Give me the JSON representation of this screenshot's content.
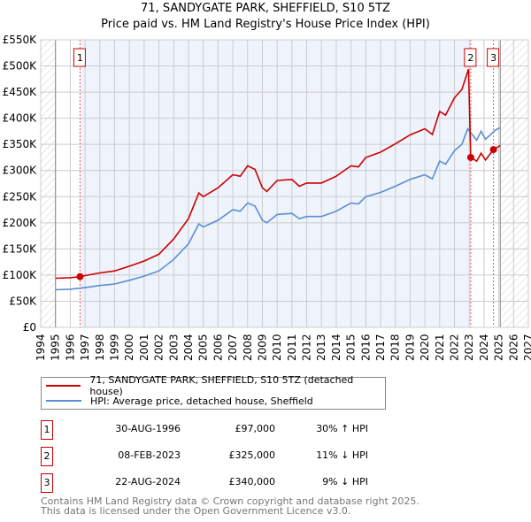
{
  "chart_data": {
    "type": "line",
    "title": "71, SANDYGATE PARK, SHEFFIELD, S10 5TZ",
    "subtitle": "Price paid vs. HM Land Registry's House Price Index (HPI)",
    "xlim": [
      1994,
      2027
    ],
    "ylim": [
      0,
      550000
    ],
    "x_ticks": [
      "1994",
      "1995",
      "1996",
      "1997",
      "1998",
      "1999",
      "2000",
      "2001",
      "2002",
      "2003",
      "2004",
      "2005",
      "2006",
      "2007",
      "2008",
      "2009",
      "2010",
      "2011",
      "2012",
      "2013",
      "2014",
      "2015",
      "2016",
      "2017",
      "2018",
      "2019",
      "2020",
      "2021",
      "2022",
      "2023",
      "2024",
      "2025",
      "2026",
      "2027"
    ],
    "y_ticks": [
      {
        "v": 0,
        "l": "£0"
      },
      {
        "v": 50000,
        "l": "£50K"
      },
      {
        "v": 100000,
        "l": "£100K"
      },
      {
        "v": 150000,
        "l": "£150K"
      },
      {
        "v": 200000,
        "l": "£200K"
      },
      {
        "v": 250000,
        "l": "£250K"
      },
      {
        "v": 300000,
        "l": "£300K"
      },
      {
        "v": 350000,
        "l": "£350K"
      },
      {
        "v": 400000,
        "l": "£400K"
      },
      {
        "v": 450000,
        "l": "£450K"
      },
      {
        "v": 500000,
        "l": "£500K"
      },
      {
        "v": 550000,
        "l": "£550K"
      }
    ],
    "grid": true,
    "series": [
      {
        "name": "71, SANDYGATE PARK, SHEFFIELD, S10 5TZ (detached house)",
        "color": "#cc0000",
        "x": [
          1995,
          1996,
          1996.66,
          1997,
          1998,
          1999,
          2000,
          2001,
          2002,
          2003,
          2004,
          2004.7,
          2005,
          2006,
          2007,
          2007.5,
          2008,
          2008.5,
          2009,
          2009.3,
          2010,
          2011,
          2011.5,
          2012,
          2013,
          2014,
          2015,
          2015.5,
          2016,
          2017,
          2018,
          2019,
          2020,
          2020.5,
          2021,
          2021.4,
          2022,
          2022.5,
          2022.95,
          2023.1,
          2023.5,
          2023.8,
          2024.1,
          2024.64,
          2025.1
        ],
        "y": [
          94000,
          95000,
          97000,
          99000,
          104000,
          108000,
          117000,
          127000,
          140000,
          169000,
          208000,
          257000,
          250000,
          267000,
          292000,
          289000,
          309000,
          302000,
          267000,
          260000,
          281000,
          283000,
          270000,
          276000,
          276000,
          289000,
          309000,
          307000,
          325000,
          335000,
          351000,
          368000,
          380000,
          369000,
          413000,
          406000,
          439000,
          455000,
          494000,
          325000,
          318000,
          333000,
          320000,
          340000,
          348000
        ]
      },
      {
        "name": "HPI: Average price, detached house, Sheffield",
        "color": "#5b8fd4",
        "x": [
          1995,
          1996,
          1997,
          1998,
          1999,
          2000,
          2001,
          2002,
          2003,
          2004,
          2004.7,
          2005,
          2006,
          2007,
          2007.5,
          2008,
          2008.5,
          2009,
          2009.3,
          2010,
          2011,
          2011.5,
          2012,
          2013,
          2014,
          2015,
          2015.5,
          2016,
          2017,
          2018,
          2019,
          2020,
          2020.5,
          2021,
          2021.4,
          2022,
          2022.5,
          2022.9,
          2023.5,
          2023.8,
          2024.1,
          2024.8,
          2025.1
        ],
        "y": [
          72000,
          73000,
          76000,
          80000,
          83000,
          90000,
          98000,
          108000,
          130000,
          160000,
          198000,
          192000,
          205000,
          225000,
          222000,
          238000,
          232000,
          205000,
          200000,
          216000,
          218000,
          208000,
          212000,
          212000,
          222000,
          238000,
          236000,
          250000,
          258000,
          270000,
          283000,
          292000,
          284000,
          318000,
          312000,
          338000,
          350000,
          380000,
          358000,
          375000,
          360000,
          378000,
          382000
        ]
      }
    ],
    "sales": [
      {
        "n": "1",
        "x": 1996.66,
        "y": 97000
      },
      {
        "n": "2",
        "x": 2023.1,
        "y": 325000
      },
      {
        "n": "3",
        "x": 2024.64,
        "y": 340000
      }
    ],
    "shaded_range": [
      1996.66,
      2023.1
    ],
    "hatched_before": 1995,
    "hatched_after": 2025.1,
    "legend_placement": "below"
  },
  "table": [
    {
      "n": "1",
      "date": "30-AUG-1996",
      "price": "£97,000",
      "diff": "30% ↑ HPI"
    },
    {
      "n": "2",
      "date": "08-FEB-2023",
      "price": "£325,000",
      "diff": "11% ↓ HPI"
    },
    {
      "n": "3",
      "date": "22-AUG-2024",
      "price": "£340,000",
      "diff": "9% ↓ HPI"
    }
  ],
  "footer": {
    "line1": "Contains HM Land Registry data © Crown copyright and database right 2025.",
    "line2": "This data is licensed under the Open Government Licence v3.0."
  }
}
